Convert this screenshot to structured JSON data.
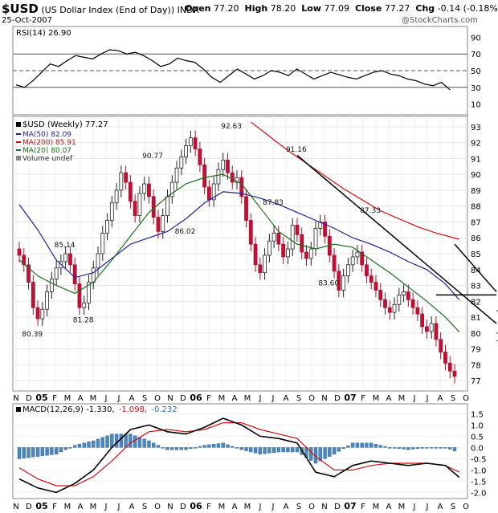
{
  "header": {
    "symbol": "$USD",
    "name": "(US Dollar Index (End of Day))",
    "exchange": "INDX",
    "date": "25-Oct-2007",
    "open_label": "Open",
    "open": "77.20",
    "high_label": "High",
    "high": "78.20",
    "low_label": "Low",
    "low": "77.09",
    "close_label": "Close",
    "close": "77.27",
    "chg_label": "Chg",
    "chg": "-0.14 (-0.18%)",
    "watermark": "@StockCharts.com"
  },
  "chart_data": [
    {
      "type": "line",
      "panel": "rsi",
      "legend": "RSI(14) 26.90",
      "ylim": [
        0,
        100
      ],
      "y_ticks": [
        10,
        30,
        50,
        70,
        90
      ],
      "reference_lines": [
        30,
        50,
        70
      ],
      "series": [
        {
          "name": "RSI(14)",
          "x": [
            0,
            2,
            4,
            6,
            8,
            10,
            12,
            14,
            16,
            18,
            20,
            22,
            24,
            26,
            28,
            30,
            32,
            34,
            36,
            38,
            40,
            42,
            44,
            46,
            48,
            50,
            52,
            54,
            56,
            58,
            60,
            62,
            64,
            66,
            68,
            70,
            72,
            74,
            76,
            78,
            80,
            82,
            84,
            86,
            88,
            90,
            92,
            94,
            96,
            98,
            100,
            102
          ],
          "values": [
            33,
            30,
            38,
            48,
            58,
            55,
            62,
            68,
            66,
            64,
            70,
            75,
            74,
            70,
            72,
            68,
            62,
            55,
            58,
            65,
            62,
            60,
            52,
            42,
            36,
            44,
            52,
            46,
            40,
            44,
            50,
            48,
            44,
            52,
            46,
            40,
            44,
            48,
            45,
            42,
            40,
            44,
            48,
            50,
            46,
            44,
            40,
            38,
            34,
            32,
            36,
            27
          ]
        }
      ]
    },
    {
      "type": "candlestick",
      "panel": "price",
      "legend": [
        "$USD (Weekly) 77.27",
        "MA(50) 82.09",
        "MA(200) 85.91",
        "MA(20) 80.07",
        "Volume undef"
      ],
      "ylim": [
        76.5,
        93.5
      ],
      "y_ticks": [
        77,
        78,
        79,
        80,
        81,
        82,
        83,
        84,
        85,
        86,
        87,
        88,
        89,
        90,
        91,
        92,
        93
      ],
      "x_labels": [
        "N",
        "D",
        "05",
        "F",
        "M",
        "A",
        "M",
        "J",
        "J",
        "A",
        "S",
        "O",
        "N",
        "D",
        "06",
        "F",
        "M",
        "A",
        "M",
        "J",
        "J",
        "A",
        "S",
        "O",
        "N",
        "D",
        "07",
        "F",
        "M",
        "A",
        "M",
        "J",
        "J",
        "A",
        "S",
        "O"
      ],
      "close": [
        84.9,
        84.3,
        83.2,
        81.6,
        80.9,
        81.5,
        82.6,
        83.4,
        84.1,
        84.5,
        85.0,
        84.3,
        83.1,
        81.6,
        81.9,
        83.2,
        84.1,
        85.0,
        86.3,
        87.1,
        88.2,
        89.0,
        90.1,
        89.5,
        88.3,
        87.4,
        88.8,
        89.4,
        88.6,
        87.3,
        86.4,
        87.4,
        88.6,
        89.5,
        90.4,
        91.1,
        91.8,
        92.3,
        91.6,
        90.6,
        89.2,
        88.4,
        89.4,
        90.3,
        90.9,
        90.1,
        89.5,
        89.8,
        88.6,
        87.1,
        85.6,
        84.3,
        83.8,
        84.9,
        85.8,
        86.3,
        85.6,
        84.8,
        85.3,
        86.8,
        86.2,
        85.1,
        84.7,
        85.3,
        86.6,
        87.0,
        86.1,
        84.9,
        83.9,
        82.7,
        83.6,
        84.3,
        84.8,
        85.1,
        84.3,
        83.6,
        83.2,
        82.7,
        82.1,
        81.6,
        81.3,
        81.8,
        82.4,
        82.6,
        82.1,
        81.6,
        81.2,
        80.4,
        80.1,
        80.6,
        79.6,
        78.8,
        78.1,
        77.6,
        77.27
      ],
      "series": [
        {
          "name": "MA(50)",
          "color": "#1f1f9c",
          "x": [
            0,
            4,
            8,
            12,
            16,
            20,
            24,
            28,
            32,
            36,
            40,
            44,
            48,
            52,
            56,
            60,
            64,
            68,
            72,
            76,
            80,
            84,
            88,
            92,
            95
          ],
          "values": [
            88.1,
            86.5,
            84.6,
            83.5,
            83.8,
            84.7,
            85.6,
            86.0,
            86.4,
            87.2,
            88.2,
            88.9,
            88.8,
            88.5,
            88.1,
            87.6,
            87.1,
            86.6,
            86.0,
            85.6,
            85.1,
            84.5,
            84.0,
            83.1,
            82.09
          ]
        },
        {
          "name": "MA(200)",
          "color": "#d01010",
          "x": [
            50,
            54,
            58,
            62,
            66,
            70,
            74,
            78,
            82,
            86,
            90,
            95
          ],
          "values": [
            93.3,
            92.4,
            91.5,
            90.7,
            89.9,
            89.1,
            88.4,
            87.7,
            87.2,
            86.7,
            86.3,
            85.91
          ]
        },
        {
          "name": "MA(20)",
          "color": "#1d6e1d",
          "x": [
            0,
            4,
            8,
            12,
            16,
            20,
            24,
            28,
            32,
            36,
            40,
            44,
            48,
            52,
            56,
            60,
            64,
            68,
            72,
            76,
            80,
            84,
            88,
            92,
            95
          ],
          "values": [
            84.6,
            83.6,
            83.0,
            82.5,
            83.2,
            84.6,
            86.1,
            87.6,
            88.6,
            89.4,
            89.8,
            90.0,
            89.4,
            87.9,
            86.4,
            85.6,
            85.3,
            85.6,
            85.4,
            84.6,
            83.8,
            82.9,
            82.0,
            81.0,
            80.07
          ]
        }
      ],
      "annotations": [
        {
          "text": "80.39",
          "x": 3,
          "y": 80.39
        },
        {
          "text": "85.14",
          "x": 10,
          "y": 85.14
        },
        {
          "text": "81.28",
          "x": 14,
          "y": 81.28
        },
        {
          "text": "90.77",
          "x": 29,
          "y": 90.77
        },
        {
          "text": "86.02",
          "x": 36,
          "y": 86.02
        },
        {
          "text": "92.63",
          "x": 46,
          "y": 92.63
        },
        {
          "text": "87.83",
          "x": 55,
          "y": 87.83
        },
        {
          "text": "91.16",
          "x": 60,
          "y": 91.16
        },
        {
          "text": "83.60",
          "x": 67,
          "y": 83.6
        },
        {
          "text": "87.33",
          "x": 76,
          "y": 87.33
        }
      ],
      "trendlines": [
        {
          "x": [
            60,
            121
          ],
          "y": [
            91.2,
            80.6
          ],
          "color": "#000000"
        },
        {
          "x": [
            94,
            124
          ],
          "y": [
            85.6,
            82.6
          ],
          "color": "#000000"
        },
        {
          "x": [
            90,
            121
          ],
          "y": [
            82.4,
            82.4
          ],
          "color": "#000000"
        },
        {
          "x": [
            108,
            124
          ],
          "y": [
            81.4,
            81.4
          ],
          "color": "#777777"
        },
        {
          "x": [
            119,
            124
          ],
          "y": [
            80.0,
            80.0
          ],
          "color": "#777777"
        },
        {
          "x": [
            124,
            130
          ],
          "y": [
            81.2,
            79.5
          ],
          "color": "#777777"
        }
      ]
    },
    {
      "type": "bar",
      "panel": "macd",
      "legend": [
        "MACD(12,26,9) -1.330,",
        "-1.098,",
        "-0.232"
      ],
      "ylim": [
        -2.2,
        1.8
      ],
      "y_ticks": [
        1.5,
        1.0,
        0.5,
        0.0,
        -0.5,
        -1.0,
        -1.5,
        -2.0
      ],
      "series": [
        {
          "name": "MACD",
          "color": "#000000",
          "x": [
            0,
            4,
            8,
            12,
            16,
            20,
            24,
            28,
            32,
            36,
            40,
            44,
            48,
            52,
            56,
            60,
            64,
            68,
            72,
            76,
            80,
            84,
            88,
            92,
            95
          ],
          "values": [
            -1.4,
            -1.8,
            -2.0,
            -1.6,
            -1.0,
            0.0,
            0.8,
            1.0,
            0.7,
            0.6,
            0.9,
            1.3,
            1.0,
            0.5,
            0.4,
            0.2,
            -1.1,
            -1.3,
            -0.8,
            -0.6,
            -0.7,
            -0.8,
            -0.7,
            -0.8,
            -1.33
          ]
        },
        {
          "name": "Signal",
          "color": "#d01010",
          "x": [
            0,
            4,
            8,
            12,
            16,
            20,
            24,
            28,
            32,
            36,
            40,
            44,
            48,
            52,
            56,
            60,
            64,
            68,
            72,
            76,
            80,
            84,
            88,
            92,
            95
          ],
          "values": [
            -0.9,
            -1.4,
            -1.7,
            -1.7,
            -1.3,
            -0.6,
            0.2,
            0.7,
            0.8,
            0.7,
            0.8,
            1.1,
            1.1,
            0.8,
            0.6,
            0.4,
            -0.4,
            -1.0,
            -1.0,
            -0.8,
            -0.7,
            -0.7,
            -0.7,
            -0.8,
            -1.098
          ]
        },
        {
          "name": "Histogram",
          "color": "#4a86c0",
          "x": [
            0,
            4,
            8,
            12,
            16,
            20,
            24,
            28,
            32,
            36,
            40,
            44,
            48,
            52,
            56,
            60,
            64,
            68,
            72,
            76,
            80,
            84,
            88,
            92,
            95
          ],
          "values": [
            -0.5,
            -0.4,
            -0.3,
            0.1,
            0.3,
            0.6,
            0.6,
            0.3,
            -0.1,
            -0.1,
            0.1,
            0.2,
            -0.1,
            -0.3,
            -0.2,
            -0.2,
            -0.7,
            -0.3,
            0.2,
            0.2,
            0.0,
            -0.1,
            0.0,
            0.0,
            -0.232
          ]
        }
      ]
    }
  ],
  "x_axis": {
    "labels": [
      "N",
      "D",
      "05",
      "F",
      "M",
      "A",
      "M",
      "J",
      "J",
      "A",
      "S",
      "O",
      "N",
      "D",
      "06",
      "F",
      "M",
      "A",
      "M",
      "J",
      "J",
      "A",
      "S",
      "O",
      "N",
      "D",
      "07",
      "F",
      "M",
      "A",
      "M",
      "J",
      "J",
      "A",
      "S",
      "O"
    ]
  }
}
